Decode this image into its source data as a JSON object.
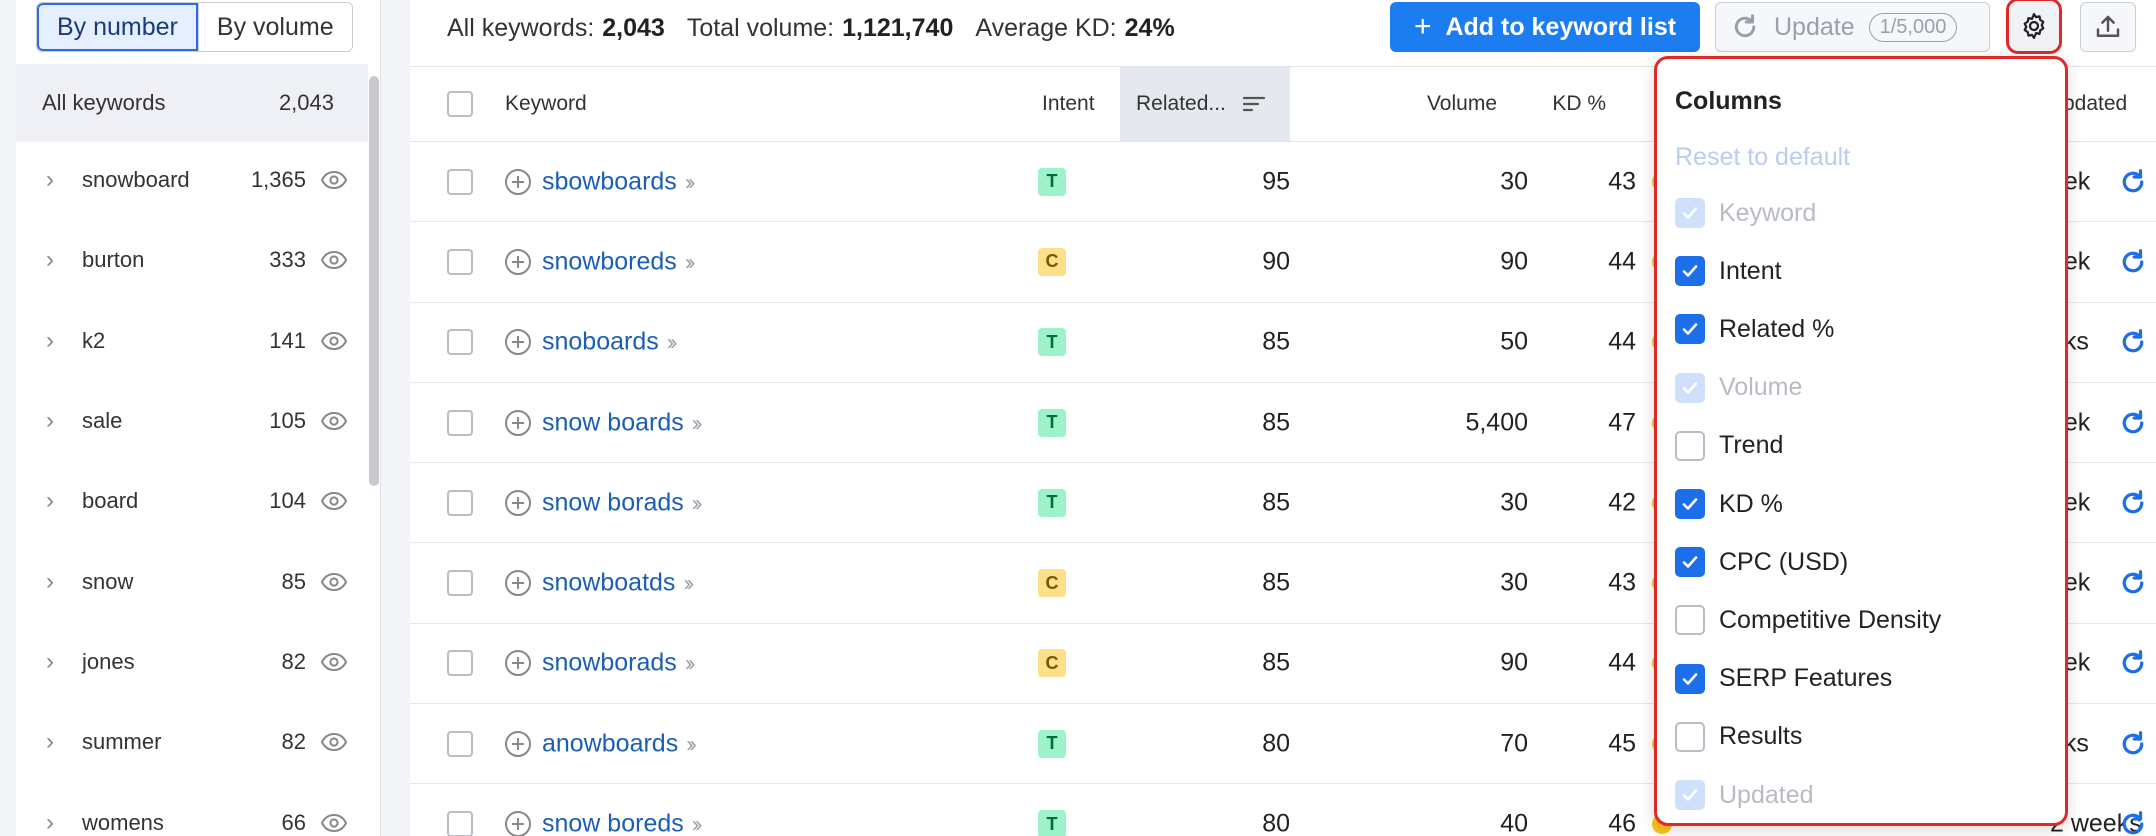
{
  "toggle": {
    "by_number": "By number",
    "by_volume": "By volume"
  },
  "groups": {
    "header_label": "All keywords",
    "header_count": "2,043",
    "items": [
      {
        "name": "snowboard",
        "count": "1,365"
      },
      {
        "name": "burton",
        "count": "333"
      },
      {
        "name": "k2",
        "count": "141"
      },
      {
        "name": "sale",
        "count": "105"
      },
      {
        "name": "board",
        "count": "104"
      },
      {
        "name": "snow",
        "count": "85"
      },
      {
        "name": "jones",
        "count": "82"
      },
      {
        "name": "summer",
        "count": "82"
      },
      {
        "name": "womens",
        "count": "66"
      }
    ]
  },
  "summary": {
    "all_label": "All keywords:",
    "all_value": "2,043",
    "volume_label": "Total volume:",
    "volume_value": "1,121,740",
    "kd_label": "Average KD:",
    "kd_value": "24%"
  },
  "toolbar": {
    "add_label": "Add to keyword list",
    "update_label": "Update",
    "update_quota": "1/5,000"
  },
  "table": {
    "headers": {
      "keyword": "Keyword",
      "intent": "Intent",
      "related": "Related...",
      "volume": "Volume",
      "kd": "KD %",
      "updated": "pdated"
    },
    "rows": [
      {
        "keyword": "sbowboards",
        "intent": "T",
        "related": "95",
        "volume": "30",
        "kd": "43",
        "updated": "eek"
      },
      {
        "keyword": "snowboreds",
        "intent": "C",
        "related": "90",
        "volume": "90",
        "kd": "44",
        "updated": "eek"
      },
      {
        "keyword": "snoboards",
        "intent": "T",
        "related": "85",
        "volume": "50",
        "kd": "44",
        "updated": "eks"
      },
      {
        "keyword": "snow boards",
        "intent": "T",
        "related": "85",
        "volume": "5,400",
        "kd": "47",
        "updated": "eek"
      },
      {
        "keyword": "snow borads",
        "intent": "T",
        "related": "85",
        "volume": "30",
        "kd": "42",
        "updated": "eek"
      },
      {
        "keyword": "snowboatds",
        "intent": "C",
        "related": "85",
        "volume": "30",
        "kd": "43",
        "updated": "eek"
      },
      {
        "keyword": "snowborads",
        "intent": "C",
        "related": "85",
        "volume": "90",
        "kd": "44",
        "updated": "eek"
      },
      {
        "keyword": "anowboards",
        "intent": "T",
        "related": "80",
        "volume": "70",
        "kd": "45",
        "updated": "eks"
      },
      {
        "keyword": "snow boreds",
        "intent": "T",
        "related": "80",
        "volume": "40",
        "kd": "46",
        "updated": "2 weeks"
      }
    ]
  },
  "columns_menu": {
    "title": "Columns",
    "reset": "Reset to default",
    "options": [
      {
        "label": "Keyword",
        "checked": true,
        "disabled": true
      },
      {
        "label": "Intent",
        "checked": true,
        "disabled": false
      },
      {
        "label": "Related %",
        "checked": true,
        "disabled": false
      },
      {
        "label": "Volume",
        "checked": true,
        "disabled": true
      },
      {
        "label": "Trend",
        "checked": false,
        "disabled": false
      },
      {
        "label": "KD %",
        "checked": true,
        "disabled": false
      },
      {
        "label": "CPC (USD)",
        "checked": true,
        "disabled": false
      },
      {
        "label": "Competitive Density",
        "checked": false,
        "disabled": false
      },
      {
        "label": "SERP Features",
        "checked": true,
        "disabled": false
      },
      {
        "label": "Results",
        "checked": false,
        "disabled": false
      },
      {
        "label": "Updated",
        "checked": true,
        "disabled": true
      }
    ]
  },
  "colors": {
    "accent": "#1c7df0",
    "highlight": "#e02828",
    "kd_dot": "#ffc21a"
  }
}
